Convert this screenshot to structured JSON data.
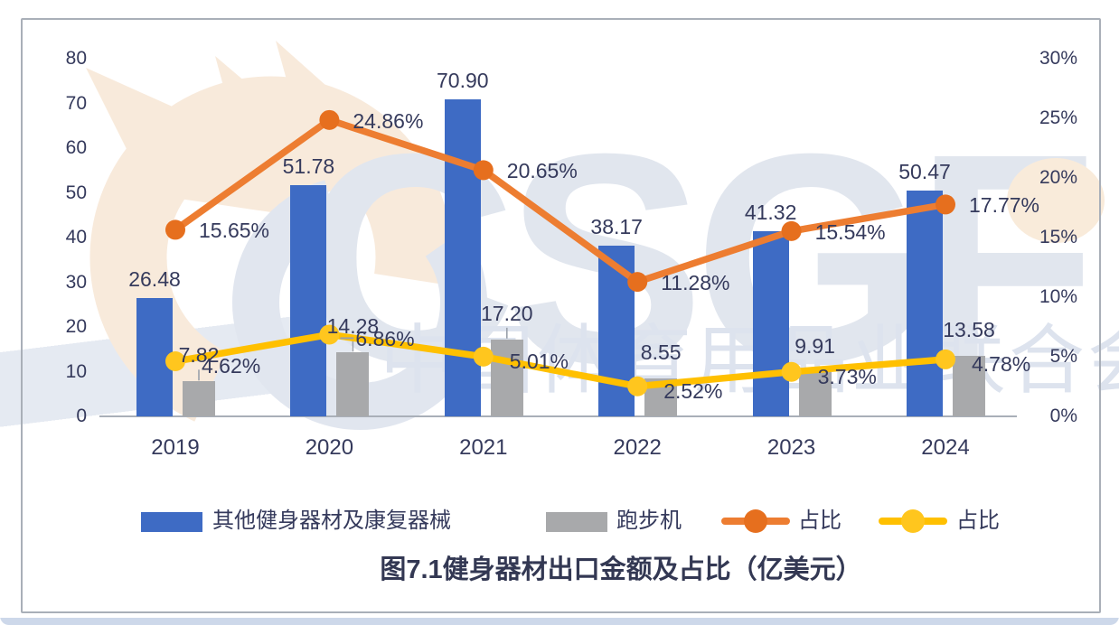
{
  "watermark": {
    "letters": "CSGF",
    "cn": "中国体育用品业联合会"
  },
  "chart_data": {
    "type": "bar",
    "title": "图7.1健身器材出口金额及占比（亿美元）",
    "categories": [
      "2019",
      "2020",
      "2021",
      "2022",
      "2023",
      "2024"
    ],
    "series": [
      {
        "name": "其他健身器材及康复器械",
        "type": "bar",
        "axis": "left",
        "color": "#3E6BC4",
        "values": [
          26.48,
          51.78,
          70.9,
          38.17,
          41.32,
          50.47
        ],
        "labels": [
          "26.48",
          "51.78",
          "70.90",
          "38.17",
          "41.32",
          "50.47"
        ]
      },
      {
        "name": "跑步机",
        "type": "bar",
        "axis": "left",
        "color": "#A8A9AB",
        "values": [
          7.82,
          14.28,
          17.2,
          8.55,
          9.91,
          13.58
        ],
        "labels": [
          "7.82",
          "14.28",
          "17.20",
          "8.55",
          "9.91",
          "13.58"
        ]
      },
      {
        "name": "占比",
        "type": "line",
        "axis": "right",
        "color": "#ED7D31",
        "marker": "circle",
        "marker_color": "#E66F1E",
        "values": [
          15.65,
          24.86,
          20.65,
          11.28,
          15.54,
          17.77
        ],
        "labels": [
          "15.65%",
          "24.86%",
          "20.65%",
          "11.28%",
          "15.54%",
          "17.77%"
        ]
      },
      {
        "name": "占比",
        "type": "line",
        "axis": "right",
        "color": "#FFC000",
        "marker": "circle",
        "marker_color": "#FFC61E",
        "values": [
          4.62,
          6.86,
          5.01,
          2.52,
          3.73,
          4.78
        ],
        "labels": [
          "4.62%",
          "6.86%",
          "5.01%",
          "2.52%",
          "3.73%",
          "4.78%"
        ]
      }
    ],
    "left_axis": {
      "min": 0,
      "max": 80,
      "step": 10,
      "tick_labels": [
        "0",
        "10",
        "20",
        "30",
        "40",
        "50",
        "60",
        "70",
        "80"
      ]
    },
    "right_axis": {
      "min": 0,
      "max": 30,
      "step": 5,
      "tick_labels": [
        "0%",
        "5%",
        "10%",
        "15%",
        "20%",
        "25%",
        "30%"
      ]
    },
    "grid": false,
    "legend_position": "bottom"
  }
}
